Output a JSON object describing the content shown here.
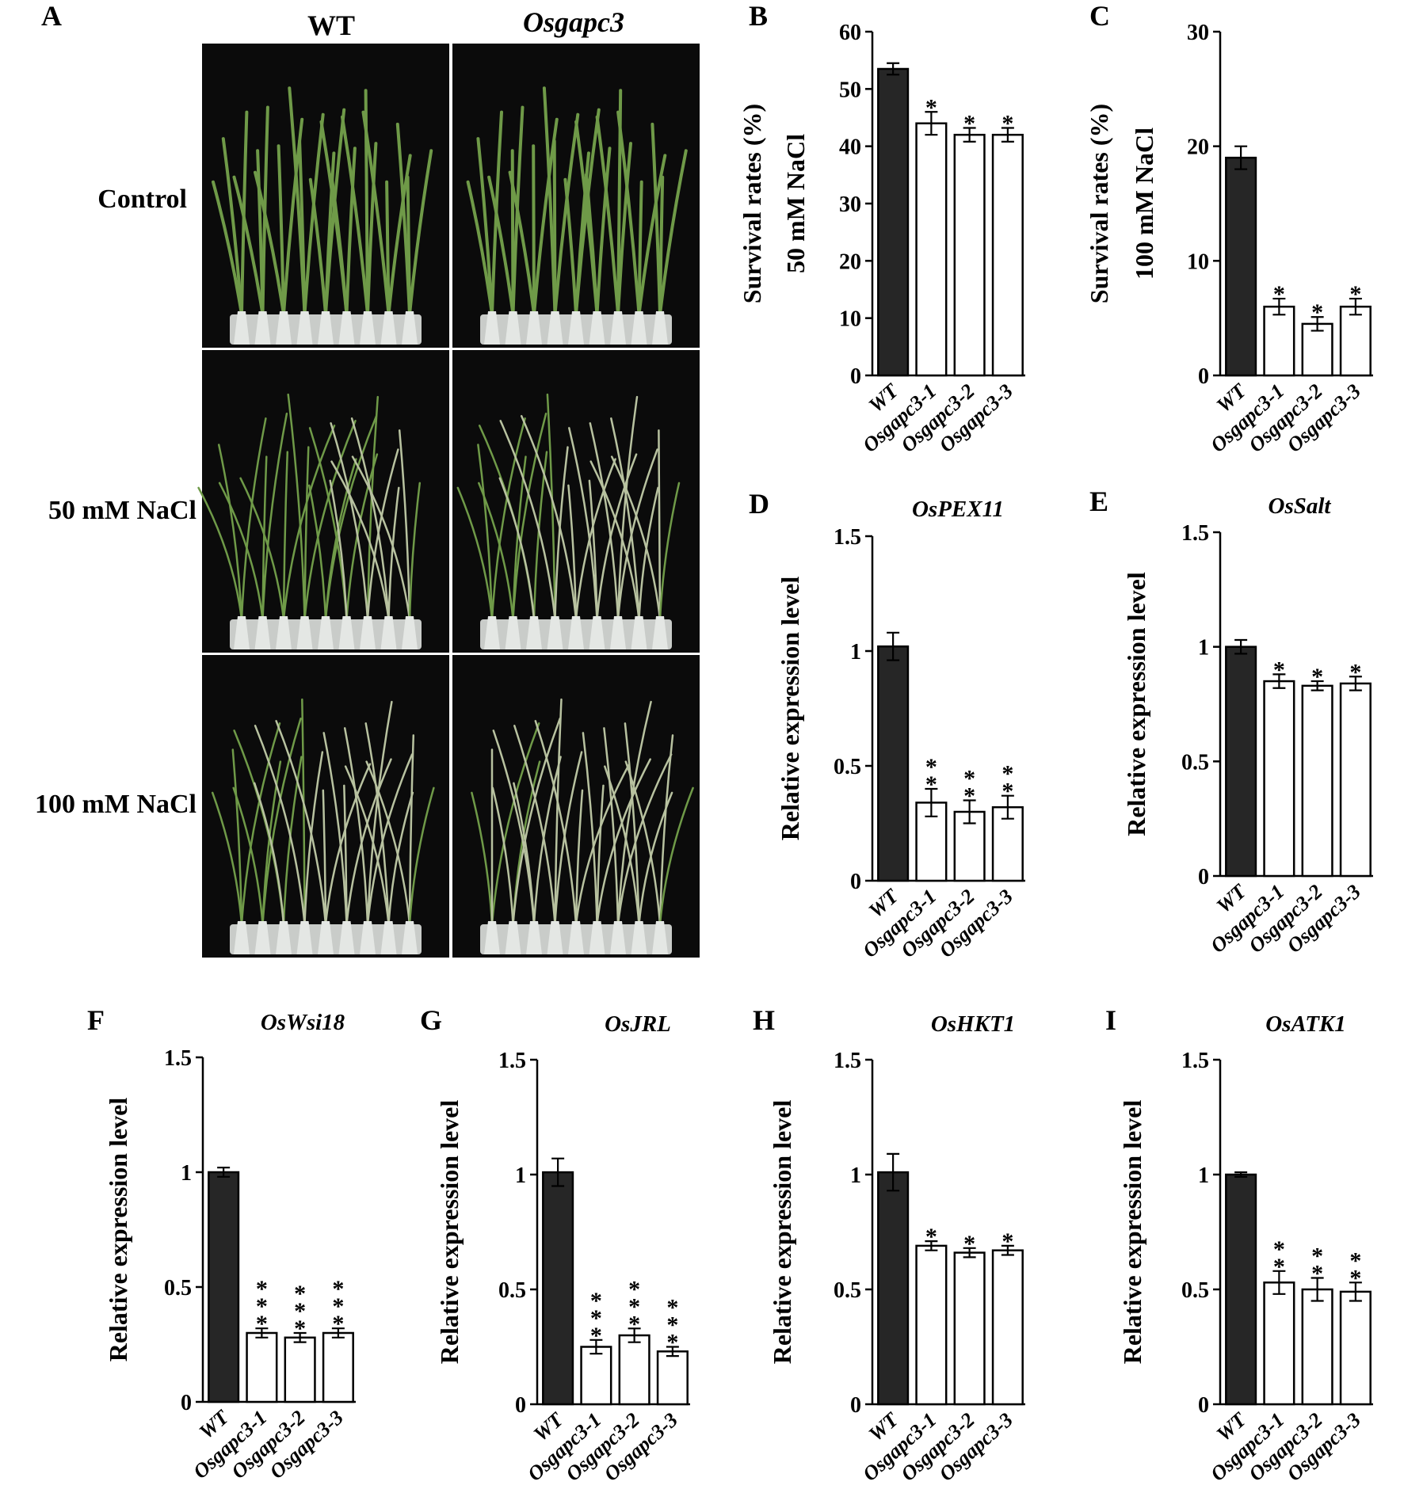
{
  "panel_a": {
    "label": "A",
    "columns": [
      "WT",
      "Osgapc3"
    ],
    "rows": [
      "Control",
      "50 mM NaCl",
      "100 mM NaCl"
    ],
    "photo_colors": {
      "background": "#0b0b0b",
      "leaf": "#6f9a48",
      "leaf_dry": "#b8c2a0",
      "tray": "#c9ccc9"
    }
  },
  "colors": {
    "wt_bar": "#262626",
    "mutant_bar": "#ffffff",
    "stroke": "#000000"
  },
  "chart_data": [
    {
      "id": "B",
      "label": "B",
      "type": "bar",
      "title": "",
      "ylabel": [
        "Survival rates (%)",
        "50 mM NaCl"
      ],
      "categories": [
        "WT",
        "Osgapc3-1",
        "Osgapc3-2",
        "Osgapc3-3"
      ],
      "values": [
        53.5,
        44.0,
        42.0,
        42.0
      ],
      "errors": [
        1.0,
        2.0,
        1.2,
        1.2
      ],
      "significance": [
        "",
        "*",
        "*",
        "*"
      ],
      "ylim": [
        0,
        60
      ],
      "yticks": [
        0,
        10,
        20,
        30,
        40,
        50,
        60
      ]
    },
    {
      "id": "C",
      "label": "C",
      "type": "bar",
      "title": "",
      "ylabel": [
        "Survival rates (%)",
        "100 mM NaCl"
      ],
      "categories": [
        "WT",
        "Osgapc3-1",
        "Osgapc3-2",
        "Osgapc3-3"
      ],
      "values": [
        19.0,
        6.0,
        4.5,
        6.0
      ],
      "errors": [
        1.0,
        0.7,
        0.6,
        0.7
      ],
      "significance": [
        "",
        "*",
        "*",
        "*"
      ],
      "ylim": [
        0,
        30
      ],
      "yticks": [
        0,
        10,
        20,
        30
      ]
    },
    {
      "id": "D",
      "label": "D",
      "type": "bar",
      "title": "OsPEX11",
      "ylabel": [
        "Relative expression level"
      ],
      "categories": [
        "WT",
        "Osgapc3-1",
        "Osgapc3-2",
        "Osgapc3-3"
      ],
      "values": [
        1.02,
        0.34,
        0.3,
        0.32
      ],
      "errors": [
        0.06,
        0.06,
        0.05,
        0.05
      ],
      "significance": [
        "",
        "**",
        "**",
        "**"
      ],
      "ylim": [
        0,
        1.5
      ],
      "yticks": [
        0,
        0.5,
        1,
        1.5
      ]
    },
    {
      "id": "E",
      "label": "E",
      "type": "bar",
      "title": "OsSalt",
      "ylabel": [
        "Relative expression level"
      ],
      "categories": [
        "WT",
        "Osgapc3-1",
        "Osgapc3-2",
        "Osgapc3-3"
      ],
      "values": [
        1.0,
        0.85,
        0.83,
        0.84
      ],
      "errors": [
        0.03,
        0.03,
        0.02,
        0.03
      ],
      "significance": [
        "",
        "*",
        "*",
        "*"
      ],
      "ylim": [
        0,
        1.5
      ],
      "yticks": [
        0,
        0.5,
        1,
        1.5
      ]
    },
    {
      "id": "F",
      "label": "F",
      "type": "bar",
      "title": "OsWsi18",
      "ylabel": [
        "Relative expression level"
      ],
      "categories": [
        "WT",
        "Osgapc3-1",
        "Osgapc3-2",
        "Osgapc3-3"
      ],
      "values": [
        1.0,
        0.3,
        0.28,
        0.3
      ],
      "errors": [
        0.02,
        0.02,
        0.02,
        0.02
      ],
      "significance": [
        "",
        "***",
        "***",
        "***"
      ],
      "ylim": [
        0,
        1.5
      ],
      "yticks": [
        0,
        0.5,
        1,
        1.5
      ]
    },
    {
      "id": "G",
      "label": "G",
      "type": "bar",
      "title": "OsJRL",
      "ylabel": [
        "Relative expression level"
      ],
      "categories": [
        "WT",
        "Osgapc3-1",
        "Osgapc3-2",
        "Osgapc3-3"
      ],
      "values": [
        1.01,
        0.25,
        0.3,
        0.23
      ],
      "errors": [
        0.06,
        0.03,
        0.03,
        0.02
      ],
      "significance": [
        "",
        "***",
        "***",
        "***"
      ],
      "ylim": [
        0,
        1.5
      ],
      "yticks": [
        0,
        0.5,
        1,
        1.5
      ]
    },
    {
      "id": "H",
      "label": "H",
      "type": "bar",
      "title": "OsHKT1",
      "ylabel": [
        "Relative expression level"
      ],
      "categories": [
        "WT",
        "Osgapc3-1",
        "Osgapc3-2",
        "Osgapc3-3"
      ],
      "values": [
        1.01,
        0.69,
        0.66,
        0.67
      ],
      "errors": [
        0.08,
        0.02,
        0.02,
        0.02
      ],
      "significance": [
        "",
        "*",
        "*",
        "*"
      ],
      "ylim": [
        0,
        1.5
      ],
      "yticks": [
        0,
        0.5,
        1,
        1.5
      ]
    },
    {
      "id": "I",
      "label": "I",
      "type": "bar",
      "title": "OsATK1",
      "ylabel": [
        "Relative expression level"
      ],
      "categories": [
        "WT",
        "Osgapc3-1",
        "Osgapc3-2",
        "Osgapc3-3"
      ],
      "values": [
        1.0,
        0.53,
        0.5,
        0.49
      ],
      "errors": [
        0.01,
        0.05,
        0.05,
        0.04
      ],
      "significance": [
        "",
        "**",
        "**",
        "**"
      ],
      "ylim": [
        0,
        1.5
      ],
      "yticks": [
        0,
        0.5,
        1,
        1.5
      ]
    }
  ]
}
